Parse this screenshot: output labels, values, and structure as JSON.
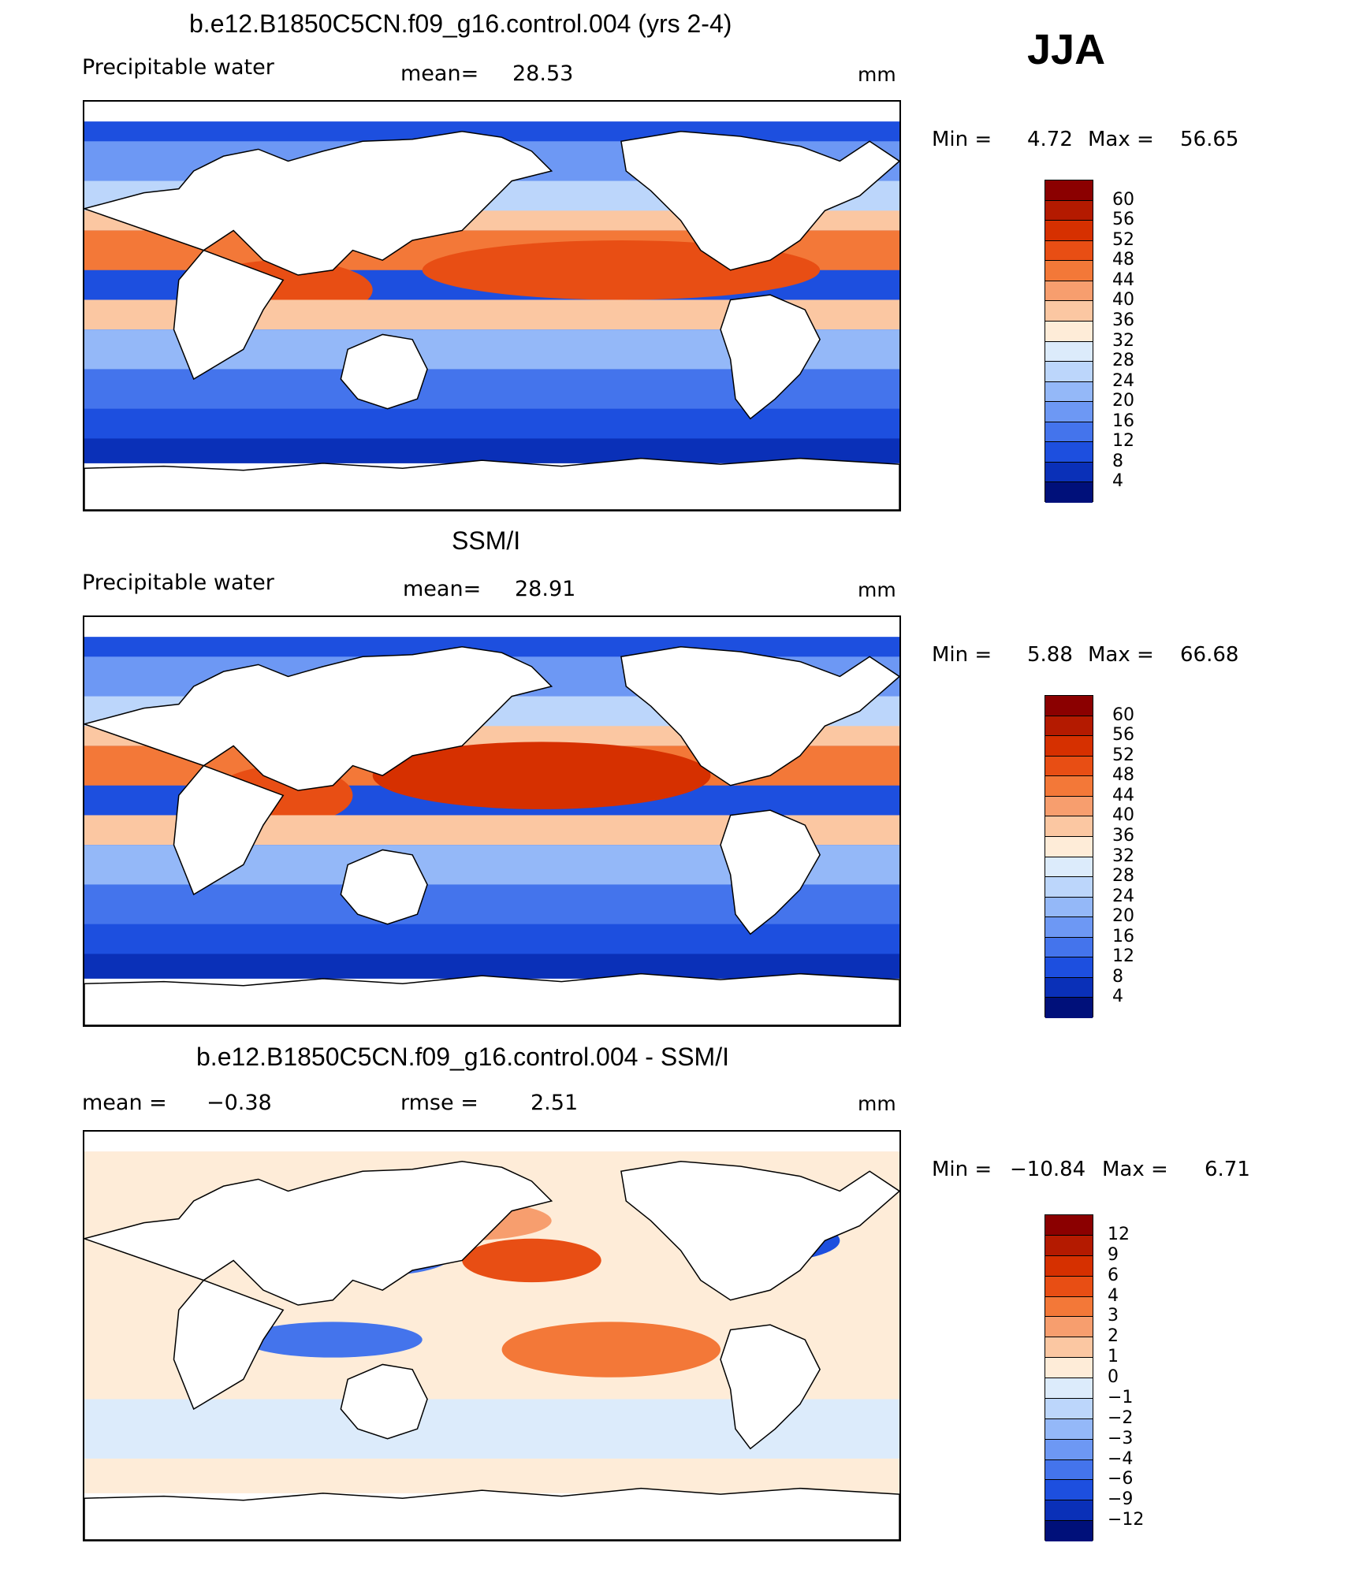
{
  "season": "JJA",
  "panel1": {
    "title": "b.e12.B1850C5CN.f09_g16.control.004 (yrs 2-4)",
    "variable": "Precipitable water",
    "mean_label": "mean=",
    "mean_value": "28.53",
    "units": "mm",
    "min_label": "Min =",
    "min_value": "4.72",
    "max_label": "Max =",
    "max_value": "56.65"
  },
  "panel2": {
    "title": "SSM/I",
    "variable": "Precipitable water",
    "mean_label": "mean=",
    "mean_value": "28.91",
    "units": "mm",
    "min_label": "Min =",
    "min_value": "5.88",
    "max_label": "Max =",
    "max_value": "66.68"
  },
  "panel3": {
    "title": "b.e12.B1850C5CN.f09_g16.control.004 - SSM/I",
    "mean_label": "mean =",
    "mean_value": "−0.38",
    "rmse_label": "rmse =",
    "rmse_value": "2.51",
    "units": "mm",
    "min_label": "Min =",
    "min_value": "−10.84",
    "max_label": "Max =",
    "max_value": "6.71"
  },
  "colorbar_main": {
    "labels": [
      "60",
      "56",
      "52",
      "48",
      "44",
      "40",
      "36",
      "32",
      "28",
      "24",
      "20",
      "16",
      "12",
      "8",
      "4"
    ],
    "colors": [
      "#8b0000",
      "#b41a00",
      "#d63000",
      "#e84e14",
      "#f37838",
      "#f79e6e",
      "#fbc7a2",
      "#feecd8",
      "#dcebfb",
      "#bcd6fb",
      "#94b8f8",
      "#6d98f4",
      "#4474ec",
      "#1d4fdf",
      "#0a30b8",
      "#00107a"
    ]
  },
  "colorbar_diff": {
    "labels": [
      "12",
      "9",
      "6",
      "4",
      "3",
      "2",
      "1",
      "0",
      "−1",
      "−2",
      "−3",
      "−4",
      "−6",
      "−9",
      "−12"
    ],
    "colors": [
      "#8b0000",
      "#b41a00",
      "#d63000",
      "#e84e14",
      "#f37838",
      "#f79e6e",
      "#fbc7a2",
      "#feecd8",
      "#dcebfb",
      "#bcd6fb",
      "#94b8f8",
      "#6d98f4",
      "#4474ec",
      "#1d4fdf",
      "#0a30b8",
      "#00107a"
    ]
  }
}
